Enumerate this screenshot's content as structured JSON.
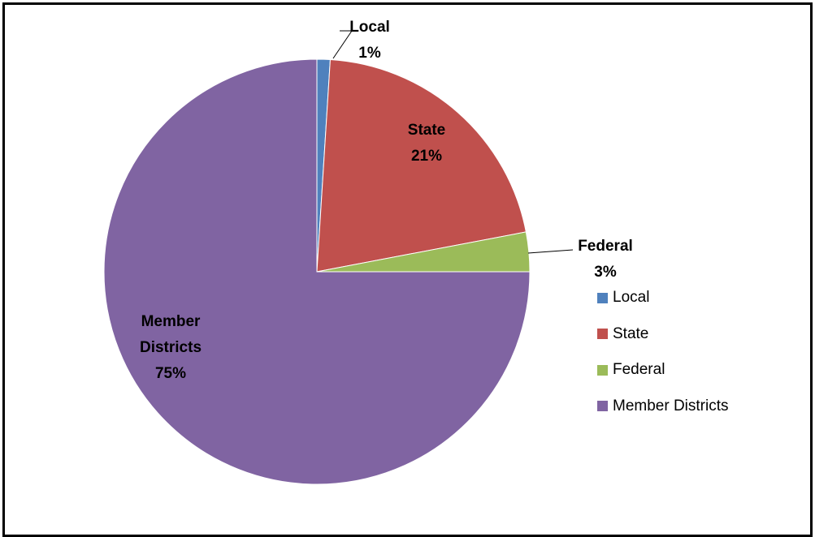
{
  "chart_data": {
    "type": "pie",
    "categories": [
      "Local",
      "State",
      "Federal",
      "Member Districts"
    ],
    "values": [
      1,
      21,
      3,
      75
    ],
    "value_labels": [
      "1%",
      "21%",
      "3%",
      "75%"
    ],
    "colors": [
      "#4f81bd",
      "#c0504d",
      "#9bbb59",
      "#8064a2"
    ],
    "legend": "right"
  }
}
